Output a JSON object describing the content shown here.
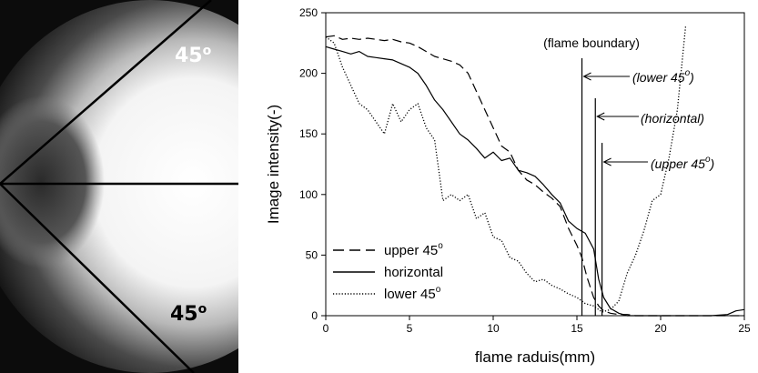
{
  "photo": {
    "angle_upper": "45",
    "angle_lower": "45",
    "degree_mark": "o"
  },
  "chart_data": {
    "type": "line",
    "xlabel": "flame raduis(mm)",
    "ylabel": "Image intensity(-)",
    "xlim": [
      0,
      25
    ],
    "ylim": [
      0,
      250
    ],
    "xticks": [
      0,
      5,
      10,
      15,
      20,
      25
    ],
    "yticks": [
      0,
      50,
      100,
      150,
      200,
      250
    ],
    "grid": false,
    "legend": {
      "placement": "bottom-left",
      "degree_mark": "o",
      "entries": [
        {
          "label": "upper 45",
          "style": "dashed"
        },
        {
          "label": "horizontal",
          "style": "solid"
        },
        {
          "label": "lower 45",
          "style": "dotted"
        }
      ]
    },
    "series": [
      {
        "label": "upper 45",
        "style": "dashed",
        "x": [
          0,
          0.5,
          1,
          1.5,
          2,
          2.5,
          3,
          3.5,
          4,
          4.5,
          5,
          5.5,
          6,
          6.5,
          7,
          7.5,
          8,
          8.5,
          9,
          9.5,
          10,
          10.5,
          11,
          11.5,
          12,
          12.5,
          13,
          13.5,
          14,
          14.5,
          15,
          15.3,
          15.6,
          16,
          16.3,
          16.6,
          17,
          17.5,
          18,
          18.5,
          19,
          20,
          21,
          22,
          23,
          24,
          25
        ],
        "y": [
          230,
          231,
          228,
          229,
          228,
          229,
          228,
          227,
          228,
          226,
          225,
          222,
          218,
          214,
          212,
          210,
          207,
          200,
          185,
          170,
          155,
          140,
          135,
          120,
          112,
          108,
          102,
          97,
          90,
          72,
          58,
          48,
          32,
          15,
          8,
          4,
          2,
          1,
          1,
          0,
          0,
          0,
          0,
          0,
          0,
          0,
          0
        ]
      },
      {
        "label": "horizontal",
        "style": "solid",
        "x": [
          0,
          0.5,
          1,
          1.5,
          2,
          2.5,
          3,
          3.5,
          4,
          4.5,
          5,
          5.5,
          6,
          6.5,
          7,
          7.5,
          8,
          8.5,
          9,
          9.5,
          10,
          10.5,
          11,
          11.5,
          12,
          12.5,
          13,
          13.5,
          14,
          14.5,
          15,
          15.5,
          16,
          16.3,
          16.6,
          17,
          17.5,
          18,
          19,
          20,
          21,
          22,
          23,
          24,
          24.5,
          25
        ],
        "y": [
          222,
          220,
          218,
          216,
          218,
          214,
          213,
          212,
          211,
          208,
          205,
          200,
          190,
          178,
          170,
          160,
          150,
          145,
          138,
          130,
          135,
          128,
          130,
          120,
          118,
          115,
          108,
          100,
          93,
          78,
          72,
          68,
          55,
          30,
          15,
          6,
          2,
          0,
          0,
          0,
          0,
          0,
          0,
          1,
          4,
          5
        ]
      },
      {
        "label": "lower 45",
        "style": "dotted",
        "x": [
          0,
          0.5,
          1,
          1.5,
          2,
          2.5,
          3,
          3.5,
          4,
          4.5,
          5,
          5.5,
          6,
          6.5,
          7,
          7.5,
          8,
          8.5,
          9,
          9.5,
          10,
          10.5,
          11,
          11.5,
          12,
          12.5,
          13,
          13.5,
          14,
          14.5,
          15,
          15.5,
          16,
          16.5,
          17,
          17.5,
          18,
          18.5,
          19,
          19.5,
          20,
          20.5,
          21,
          21.5
        ],
        "y": [
          230,
          225,
          205,
          190,
          175,
          170,
          160,
          150,
          175,
          160,
          170,
          175,
          155,
          145,
          95,
          100,
          95,
          100,
          80,
          85,
          65,
          62,
          48,
          45,
          35,
          28,
          30,
          25,
          22,
          18,
          15,
          10,
          8,
          3,
          5,
          12,
          35,
          50,
          70,
          95,
          100,
          130,
          170,
          240
        ]
      }
    ],
    "boundaries": [
      {
        "x": 15.3,
        "label": "lower 45"
      },
      {
        "x": 16.1,
        "label": "horizontal"
      },
      {
        "x": 16.5,
        "label": "upper 45"
      }
    ],
    "annotations": {
      "header": "(flame boundary)",
      "lower": "(lower 45",
      "horizontal": "(horizontal",
      "upper": "(upper 45",
      "degree_mark": "o",
      "close": ")"
    }
  }
}
